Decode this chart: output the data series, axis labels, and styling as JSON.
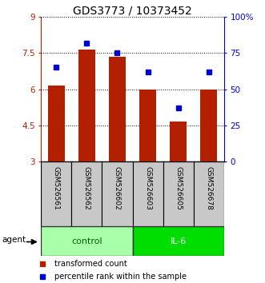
{
  "title": "GDS3773 / 10373452",
  "samples": [
    "GSM526561",
    "GSM526562",
    "GSM526602",
    "GSM526603",
    "GSM526605",
    "GSM526678"
  ],
  "red_values": [
    6.15,
    7.65,
    7.35,
    6.0,
    4.65,
    6.0
  ],
  "blue_values": [
    65,
    82,
    75,
    62,
    37,
    62
  ],
  "ylim_left": [
    3,
    9
  ],
  "ylim_right": [
    0,
    100
  ],
  "yticks_left": [
    3,
    4.5,
    6,
    7.5,
    9
  ],
  "ytick_labels_left": [
    "3",
    "4.5",
    "6",
    "7.5",
    "9"
  ],
  "yticks_right": [
    0,
    25,
    50,
    75,
    100
  ],
  "ytick_labels_right": [
    "0",
    "25",
    "50",
    "75",
    "100%"
  ],
  "bar_color": "#B22000",
  "dot_color": "#0000CC",
  "control_color": "#AAFFAA",
  "il6_color": "#00DD00",
  "agent_label": "agent",
  "legend_bar": "transformed count",
  "legend_dot": "percentile rank within the sample",
  "bar_width": 0.55,
  "tick_fontsize": 7.5,
  "title_fontsize": 10,
  "sample_fontsize": 6.5,
  "group_fontsize": 8,
  "legend_fontsize": 7
}
